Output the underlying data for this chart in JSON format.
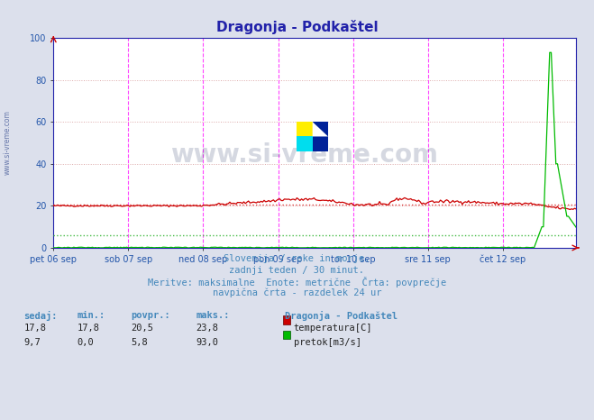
{
  "title": "Dragonja - Podkaštel",
  "title_color": "#2222aa",
  "bg_color": "#dce0ec",
  "plot_bg_color": "#ffffff",
  "ylim": [
    0,
    100
  ],
  "yticks": [
    0,
    20,
    40,
    60,
    80,
    100
  ],
  "x_labels": [
    "pet 06 sep",
    "sob 07 sep",
    "ned 08 sep",
    "pon 09 sep",
    "tor 10 sep",
    "sre 11 sep",
    "čet 12 sep"
  ],
  "n_points": 336,
  "temp_color": "#cc0000",
  "flow_color": "#00bb00",
  "temp_avg_line": 20.5,
  "flow_avg_line": 5.8,
  "temp_avg_color": "#dd4444",
  "flow_avg_color": "#44bb44",
  "vline_color": "#ff44ff",
  "hgrid_color": "#ddaaaa",
  "footer_lines": [
    "Slovenija / reke in morje.",
    "zadnji teden / 30 minut.",
    "Meritve: maksimalne  Enote: metrične  Črta: povprečje",
    "navpična črta - razdelek 24 ur"
  ],
  "footer_color": "#4488bb",
  "table_headers": [
    "sedaj:",
    "min.:",
    "povpr.:",
    "maks.:"
  ],
  "table_row1": [
    "17,8",
    "17,8",
    "20,5",
    "23,8"
  ],
  "table_row2": [
    "9,7",
    "0,0",
    "5,8",
    "93,0"
  ],
  "legend_title": "Dragonja - Podkaštel",
  "legend_temp": "temperatura[C]",
  "legend_flow": "pretok[m3/s]",
  "watermark": "www.si-vreme.com",
  "watermark_color": "#c8cede",
  "spine_color": "#2222aa",
  "axis_label_color": "#2255aa"
}
